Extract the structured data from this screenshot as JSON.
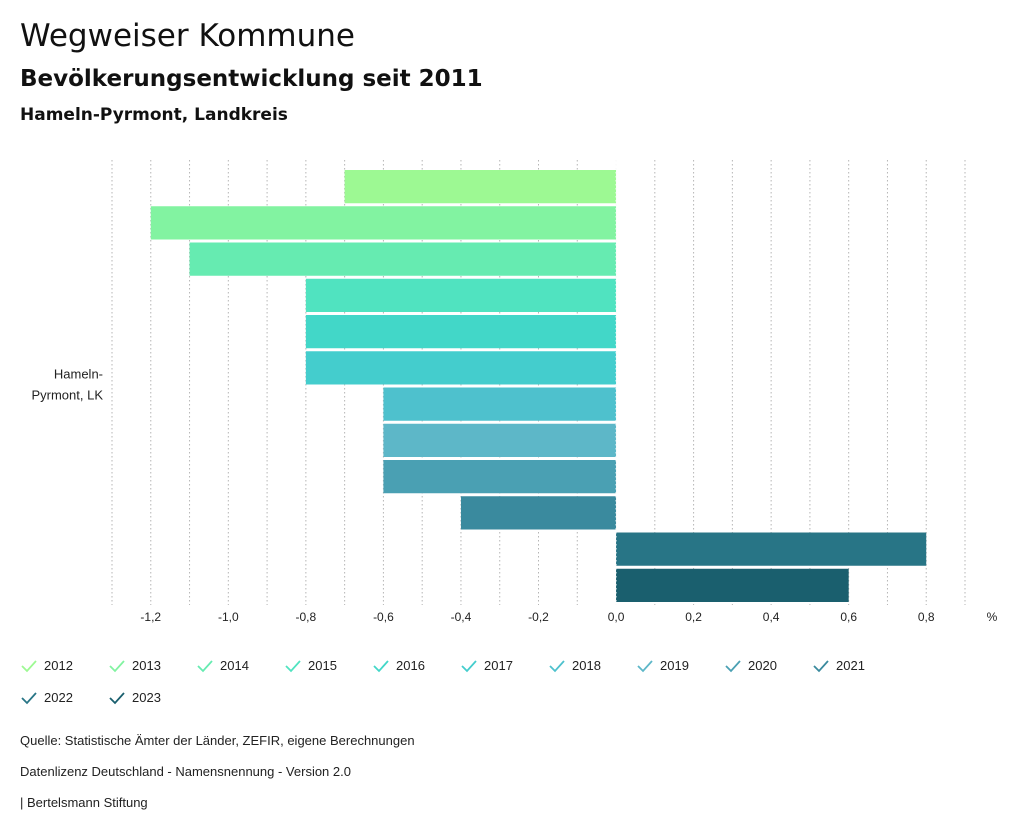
{
  "header": {
    "title": "Wegweiser Kommune",
    "subtitle": "Bevölkerungsentwicklung seit 2011",
    "region": "Hameln-Pyrmont, Landkreis"
  },
  "chart_data": {
    "type": "bar",
    "orientation": "horizontal",
    "category_label_lines": [
      "Hameln-",
      "Pyrmont, LK"
    ],
    "unit": "%",
    "xlim": [
      -1.3,
      0.9
    ],
    "ticks": [
      -1.2,
      -1.0,
      -0.8,
      -0.6,
      -0.4,
      -0.2,
      0.0,
      0.2,
      0.4,
      0.6,
      0.8
    ],
    "tick_labels": [
      "-1,2",
      "-1,0",
      "-0,8",
      "-0,6",
      "-0,4",
      "-0,2",
      "0,0",
      "0,2",
      "0,4",
      "0,6",
      "0,8"
    ],
    "series": [
      {
        "name": "2012",
        "value": -0.7,
        "color": "#9df993"
      },
      {
        "name": "2013",
        "value": -1.2,
        "color": "#82f3a1"
      },
      {
        "name": "2014",
        "value": -1.1,
        "color": "#66ebb1"
      },
      {
        "name": "2015",
        "value": -0.8,
        "color": "#50e3c0"
      },
      {
        "name": "2016",
        "value": -0.8,
        "color": "#42d7c8"
      },
      {
        "name": "2017",
        "value": -0.8,
        "color": "#44cdcd"
      },
      {
        "name": "2018",
        "value": -0.6,
        "color": "#4ec1cd"
      },
      {
        "name": "2019",
        "value": -0.6,
        "color": "#5db7c8"
      },
      {
        "name": "2020",
        "value": -0.6,
        "color": "#4aa0b3"
      },
      {
        "name": "2021",
        "value": -0.4,
        "color": "#3a8a9e"
      },
      {
        "name": "2022",
        "value": 0.8,
        "color": "#287586"
      },
      {
        "name": "2023",
        "value": 0.6,
        "color": "#1a5f6e"
      }
    ],
    "grid": "vertical-dotted"
  },
  "footer": {
    "source": "Quelle: Statistische Ämter der Länder, ZEFIR, eigene Berechnungen",
    "license": "Datenlizenz Deutschland - Namensnennung - Version 2.0",
    "brand": "| Bertelsmann Stiftung"
  }
}
